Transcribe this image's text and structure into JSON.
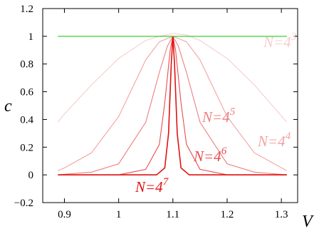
{
  "chart_data": {
    "type": "line",
    "xlabel": "V",
    "ylabel": "c",
    "xlim": [
      0.86,
      1.33
    ],
    "ylim": [
      -0.2,
      1.2
    ],
    "x_ticks": [
      "0.9",
      "1",
      "1.1",
      "1.2",
      "1.3"
    ],
    "y_ticks": [
      "-0.2",
      "0",
      "0.2",
      "0.4",
      "0.6",
      "0.8",
      "1",
      "1.2"
    ],
    "grid": false,
    "legend": "none",
    "series": [
      {
        "label_base": "N=4",
        "label_exp": "3",
        "color": "#f7cccc",
        "x": [
          0.888,
          0.9,
          0.95,
          1.0,
          1.05,
          1.075,
          1.1,
          1.125,
          1.15,
          1.2,
          1.25,
          1.31
        ],
        "y": [
          0.38,
          0.44,
          0.65,
          0.84,
          0.97,
          1.0,
          1.02,
          1.01,
          0.97,
          0.84,
          0.65,
          0.38
        ]
      },
      {
        "label_base": "N=4",
        "label_exp": "4",
        "color": "#f2a3a3",
        "x": [
          0.888,
          0.9,
          0.95,
          1.0,
          1.05,
          1.075,
          1.1,
          1.125,
          1.15,
          1.2,
          1.25,
          1.31
        ],
        "y": [
          0.03,
          0.05,
          0.16,
          0.42,
          0.83,
          0.96,
          1.0,
          0.96,
          0.83,
          0.42,
          0.16,
          0.03
        ]
      },
      {
        "label_base": "N=4",
        "label_exp": "5",
        "color": "#ee7f7f",
        "x": [
          0.888,
          0.95,
          1.0,
          1.05,
          1.075,
          1.09,
          1.1,
          1.11,
          1.125,
          1.15,
          1.2,
          1.25,
          1.31
        ],
        "y": [
          0.0,
          0.02,
          0.08,
          0.38,
          0.74,
          0.93,
          1.0,
          0.93,
          0.74,
          0.38,
          0.08,
          0.02,
          0.0
        ]
      },
      {
        "label_base": "N=4",
        "label_exp": "6",
        "color": "#ea4c4c",
        "x": [
          0.888,
          1.0,
          1.05,
          1.075,
          1.085,
          1.095,
          1.1,
          1.105,
          1.115,
          1.125,
          1.15,
          1.2,
          1.31
        ],
        "y": [
          0.0,
          0.0,
          0.04,
          0.22,
          0.52,
          0.9,
          1.0,
          0.9,
          0.52,
          0.22,
          0.04,
          0.0,
          0.0
        ]
      },
      {
        "label_base": "N=4",
        "label_exp": "7",
        "color": "#e01212",
        "x": [
          0.888,
          1.07,
          1.085,
          1.092,
          1.097,
          1.1,
          1.103,
          1.108,
          1.115,
          1.13,
          1.31
        ],
        "y": [
          0.0,
          0.0,
          0.05,
          0.3,
          0.8,
          1.0,
          0.8,
          0.3,
          0.05,
          0.0,
          0.0
        ]
      },
      {
        "label_base": "",
        "label_exp": "",
        "color": "#22cc22",
        "x": [
          0.888,
          1.31
        ],
        "y": [
          1.0,
          1.0
        ]
      }
    ]
  }
}
